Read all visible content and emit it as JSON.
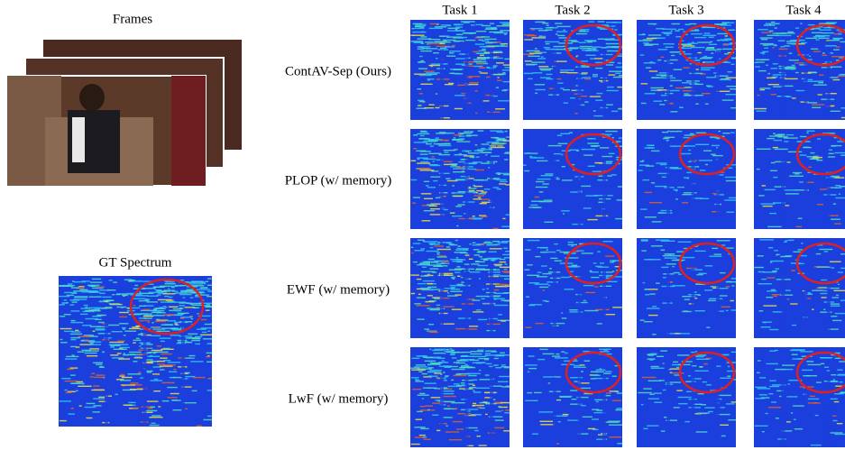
{
  "frames_label": "Frames",
  "gt_label": "GT Spectrum",
  "tasks": [
    "Task 1",
    "Task 2",
    "Task 3",
    "Task 4"
  ],
  "methods": [
    "ContAV-Sep (Ours)",
    "PLOP (w/ memory)",
    "EWF (w/ memory)",
    "LwF (w/ memory)"
  ]
}
